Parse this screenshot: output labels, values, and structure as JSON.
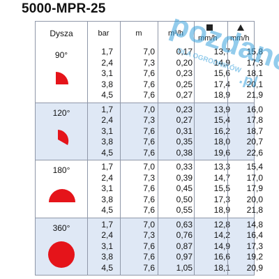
{
  "title": "5000-MPR-25",
  "headers": {
    "nozzle": "Dysza",
    "bar": "bar",
    "m": "m",
    "flow": "m³/h",
    "precip_square": "mm/h",
    "precip_triangle": "mm/h"
  },
  "watermark": {
    "brand": "pozdane",
    "sub": "DLA OGRODNIKÓW",
    "tld": ".pl",
    "color": "#3aa3dc"
  },
  "colors": {
    "shape": "#e5141a",
    "band": "#dfe8f5",
    "border": "#8f97a8"
  },
  "groups": [
    {
      "angle": "90°",
      "shape": "quarter-circle",
      "rows": [
        {
          "bar": "1,7",
          "m": "7,0",
          "flow": "0,17",
          "sq": "13,7",
          "tri": "15,8"
        },
        {
          "bar": "2,4",
          "m": "7,3",
          "flow": "0,20",
          "sq": "14,9",
          "tri": "17,3"
        },
        {
          "bar": "3,1",
          "m": "7,6",
          "flow": "0,23",
          "sq": "15,6",
          "tri": "18,1"
        },
        {
          "bar": "3,8",
          "m": "7,6",
          "flow": "0,25",
          "sq": "17,4",
          "tri": "20,1"
        },
        {
          "bar": "4,5",
          "m": "7,6",
          "flow": "0,27",
          "sq": "18,9",
          "tri": "21,9"
        }
      ]
    },
    {
      "angle": "120°",
      "shape": "third-circle",
      "rows": [
        {
          "bar": "1,7",
          "m": "7,0",
          "flow": "0,23",
          "sq": "13,9",
          "tri": "16,0"
        },
        {
          "bar": "2,4",
          "m": "7,3",
          "flow": "0,27",
          "sq": "15,4",
          "tri": "17,8"
        },
        {
          "bar": "3,1",
          "m": "7,6",
          "flow": "0,31",
          "sq": "16,2",
          "tri": "18,7"
        },
        {
          "bar": "3,8",
          "m": "7,6",
          "flow": "0,35",
          "sq": "18,0",
          "tri": "20,7"
        },
        {
          "bar": "4,5",
          "m": "7,6",
          "flow": "0,38",
          "sq": "19,6",
          "tri": "22,6"
        }
      ]
    },
    {
      "angle": "180°",
      "shape": "half-circle",
      "rows": [
        {
          "bar": "1,7",
          "m": "7,0",
          "flow": "0,33",
          "sq": "13,3",
          "tri": "15,4"
        },
        {
          "bar": "2,4",
          "m": "7,3",
          "flow": "0,39",
          "sq": "14,7",
          "tri": "17,0"
        },
        {
          "bar": "3,1",
          "m": "7,6",
          "flow": "0,45",
          "sq": "15,5",
          "tri": "17,9"
        },
        {
          "bar": "3,8",
          "m": "7,6",
          "flow": "0,50",
          "sq": "17,3",
          "tri": "20,0"
        },
        {
          "bar": "4,5",
          "m": "7,6",
          "flow": "0,55",
          "sq": "18,9",
          "tri": "21,8"
        }
      ]
    },
    {
      "angle": "360°",
      "shape": "full-circle",
      "rows": [
        {
          "bar": "1,7",
          "m": "7,0",
          "flow": "0,63",
          "sq": "12,8",
          "tri": "14,8"
        },
        {
          "bar": "2,4",
          "m": "7,3",
          "flow": "0,76",
          "sq": "14,2",
          "tri": "16,4"
        },
        {
          "bar": "3,1",
          "m": "7,6",
          "flow": "0,87",
          "sq": "14,9",
          "tri": "17,3"
        },
        {
          "bar": "3,8",
          "m": "7,6",
          "flow": "0,97",
          "sq": "16,6",
          "tri": "19,2"
        },
        {
          "bar": "4,5",
          "m": "7,6",
          "flow": "1,05",
          "sq": "18,1",
          "tri": "20,9"
        }
      ]
    }
  ]
}
